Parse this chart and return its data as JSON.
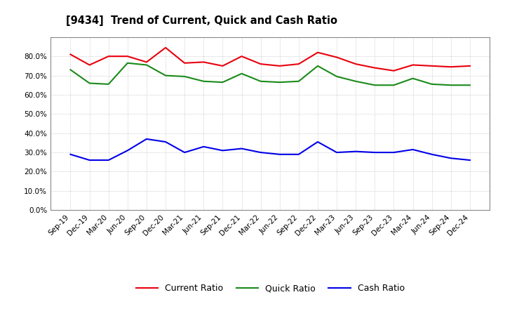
{
  "title": "[9434]  Trend of Current, Quick and Cash Ratio",
  "x_labels": [
    "Sep-19",
    "Dec-19",
    "Mar-20",
    "Jun-20",
    "Sep-20",
    "Dec-20",
    "Mar-21",
    "Jun-21",
    "Sep-21",
    "Dec-21",
    "Mar-22",
    "Jun-22",
    "Sep-22",
    "Dec-22",
    "Mar-23",
    "Jun-23",
    "Sep-23",
    "Dec-23",
    "Mar-24",
    "Jun-24",
    "Sep-24",
    "Dec-24"
  ],
  "current_ratio": [
    81.0,
    75.5,
    80.0,
    80.0,
    77.0,
    84.5,
    76.5,
    77.0,
    75.0,
    80.0,
    76.0,
    75.0,
    76.0,
    82.0,
    79.5,
    76.0,
    74.0,
    72.5,
    75.5,
    75.0,
    74.5,
    75.0
  ],
  "quick_ratio": [
    73.0,
    66.0,
    65.5,
    76.5,
    75.5,
    70.0,
    69.5,
    67.0,
    66.5,
    71.0,
    67.0,
    66.5,
    67.0,
    75.0,
    69.5,
    67.0,
    65.0,
    65.0,
    68.5,
    65.5,
    65.0,
    65.0
  ],
  "cash_ratio": [
    29.0,
    26.0,
    26.0,
    31.0,
    37.0,
    35.5,
    30.0,
    33.0,
    31.0,
    32.0,
    30.0,
    29.0,
    29.0,
    35.5,
    30.0,
    30.5,
    30.0,
    30.0,
    31.5,
    29.0,
    27.0,
    26.0
  ],
  "current_color": "#e8000d",
  "quick_color": "#1a8a1a",
  "cash_color": "#0000e8",
  "ylim": [
    0,
    90
  ],
  "yticks": [
    0,
    10,
    20,
    30,
    40,
    50,
    60,
    70,
    80
  ],
  "background_color": "#ffffff",
  "grid_color": "#aaaaaa",
  "legend_labels": [
    "Current Ratio",
    "Quick Ratio",
    "Cash Ratio"
  ]
}
